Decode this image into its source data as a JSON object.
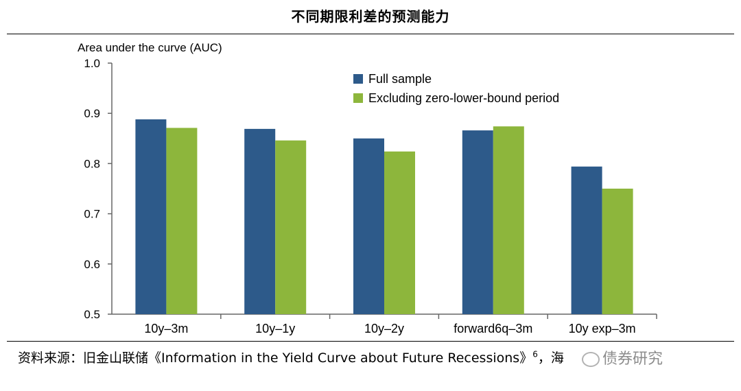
{
  "title": "不同期限利差的预测能力",
  "source": {
    "prefix": "资料来源：旧金山联储《Information in the Yield Curve about Future Recessions》",
    "sup": "6",
    "suffix": "，海"
  },
  "watermark": "债券研究",
  "chart_data": {
    "type": "bar",
    "ylabel": "Area under the curve (AUC)",
    "ylim": [
      0.5,
      1.0
    ],
    "yticks": [
      "0.5",
      "0.6",
      "0.7",
      "0.8",
      "0.9",
      "1.0"
    ],
    "categories": [
      "10y–3m",
      "10y–1y",
      "10y–2y",
      "forward6q–3m",
      "10y exp–3m"
    ],
    "series": [
      {
        "name": "Full sample",
        "color": "#2d5a8a",
        "values": [
          0.888,
          0.869,
          0.85,
          0.866,
          0.794
        ]
      },
      {
        "name": "Excluding zero-lower-bound period",
        "color": "#8db63c",
        "values": [
          0.871,
          0.846,
          0.824,
          0.874,
          0.75
        ]
      }
    ],
    "legend_position": "top-right",
    "grid": false
  }
}
